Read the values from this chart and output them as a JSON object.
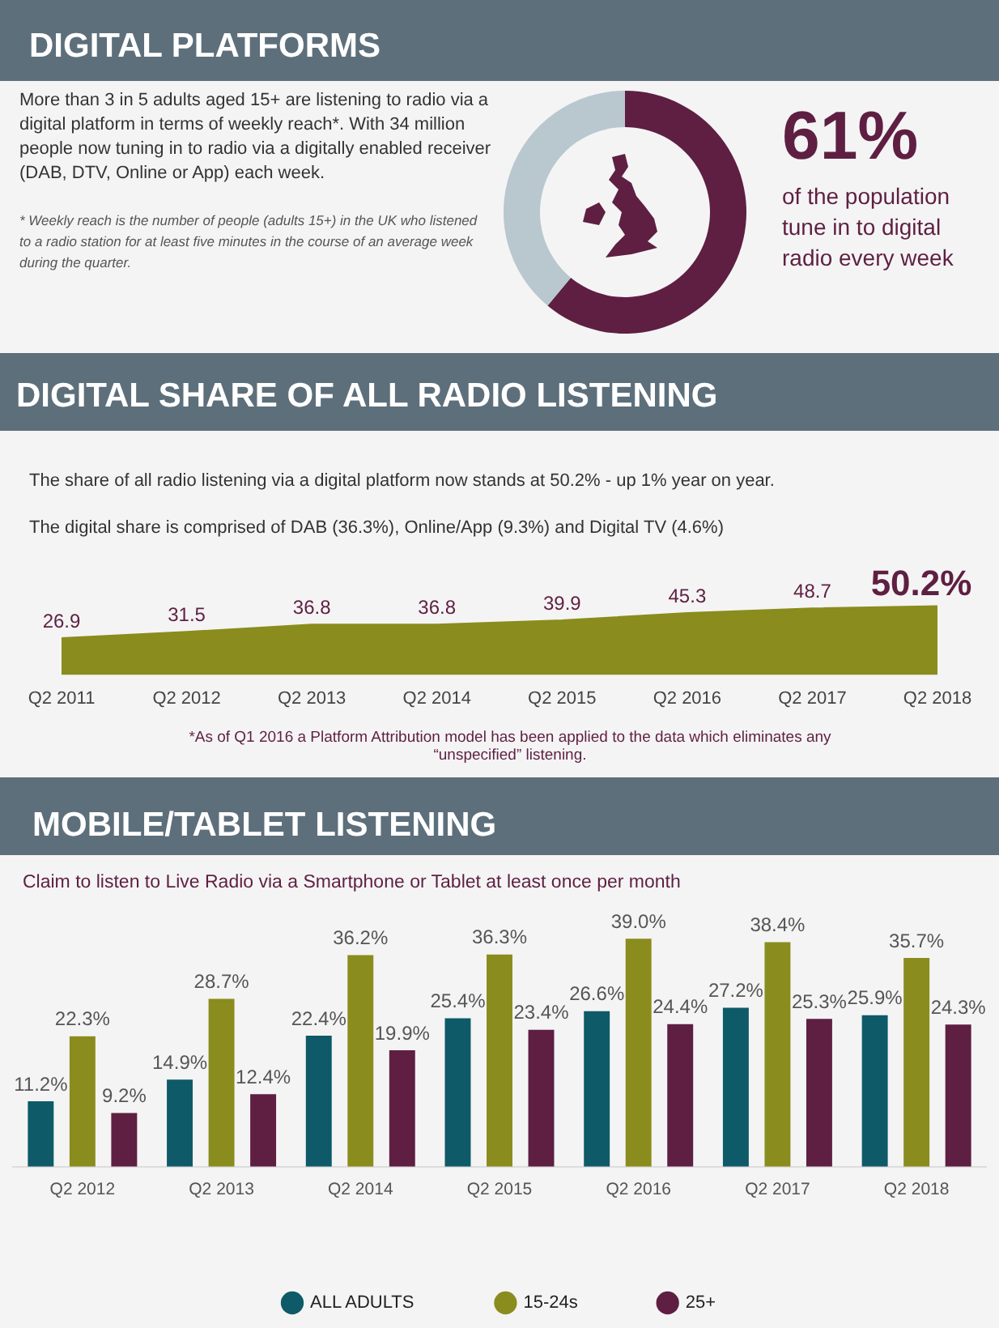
{
  "chart_data": [
    {
      "type": "donut",
      "title": "DIGITAL PLATFORMS",
      "categories": [
        null,
        null
      ],
      "values": [
        61,
        39
      ],
      "colors": [
        "#5e1f42",
        "#b9c7cf"
      ],
      "value_labels": [
        "61%",
        null
      ],
      "legend": false,
      "annotations": [
        "More than 3 in 5 adults aged 15+ are listening to radio via a digital platform in terms of weekly reach*. With 34 million people now tuning in to radio via a digitally enabled receiver (DAB, DTV, Online or App) each week.",
        "* Weekly reach is the number of people (adults 15+) in the UK who listened to a radio station for at least five minutes in the course of an average week during the quarter.",
        "of the population tune in to digital radio every week"
      ]
    },
    {
      "type": "area",
      "title": "DIGITAL SHARE OF ALL RADIO LISTENING",
      "subtitle": "The share of all radio listening  via a digital platform now stands at 50.2% - up 1% year on year.",
      "categories": [
        "Q2 2011",
        "Q2 2012",
        "Q2 2013",
        "Q2 2014",
        "Q2 2015",
        "Q2 2016",
        "Q2 2017",
        "Q2 2018"
      ],
      "values": [
        26.9,
        31.5,
        36.8,
        36.8,
        39.9,
        45.3,
        48.7,
        50.2
      ],
      "color": "#8a8c1e",
      "value_labels": [
        "26.9",
        "31.5",
        "36.8",
        "36.8",
        "39.9",
        "45.3",
        "48.7",
        "50.2%"
      ],
      "legend": false,
      "tick_labels": "x",
      "annotations": [
        "The digital share is comprised of DAB (36.3%), Online/App (9.3%) and Digital TV (4.6%)",
        "*As of Q1 2016 a Platform Attribution model has been applied to the data which eliminates any “unspecified” listening."
      ]
    },
    {
      "type": "bar",
      "title": "MOBILE/TABLET LISTENING",
      "subtitle": "Claim to listen to Live Radio via a Smartphone or Tablet at least once per month",
      "categories": [
        "Q2 2012",
        "Q2 2013",
        "Q2 2014",
        "Q2 2015",
        "Q2 2016",
        "Q2 2017",
        "Q2 2018"
      ],
      "legend": "bottom",
      "tick_labels": "x",
      "series": [
        {
          "name": "ALL ADULTS",
          "color": "#0e5a68",
          "values": [
            11.2,
            14.9,
            22.4,
            25.4,
            26.6,
            27.2,
            25.9
          ],
          "value_labels": [
            "11.2%",
            "14.9%",
            "22.4%",
            "25.4%",
            "26.6%",
            "27.2%",
            "25.9%"
          ]
        },
        {
          "name": "15-24s",
          "color": "#8a8c1e",
          "values": [
            22.3,
            28.7,
            36.2,
            36.3,
            39.0,
            38.4,
            35.7
          ],
          "value_labels": [
            "22.3%",
            "28.7%",
            "36.2%",
            "36.3%",
            "39.0%",
            "38.4%",
            "35.7%"
          ]
        },
        {
          "name": "25+",
          "color": "#5e1f42",
          "values": [
            9.2,
            12.4,
            19.9,
            23.4,
            24.4,
            25.3,
            24.3
          ],
          "value_labels": [
            "9.2%",
            "12.4%",
            "19.9%",
            "23.4%",
            "24.4%",
            "25.3%",
            "24.3%"
          ]
        }
      ]
    }
  ]
}
